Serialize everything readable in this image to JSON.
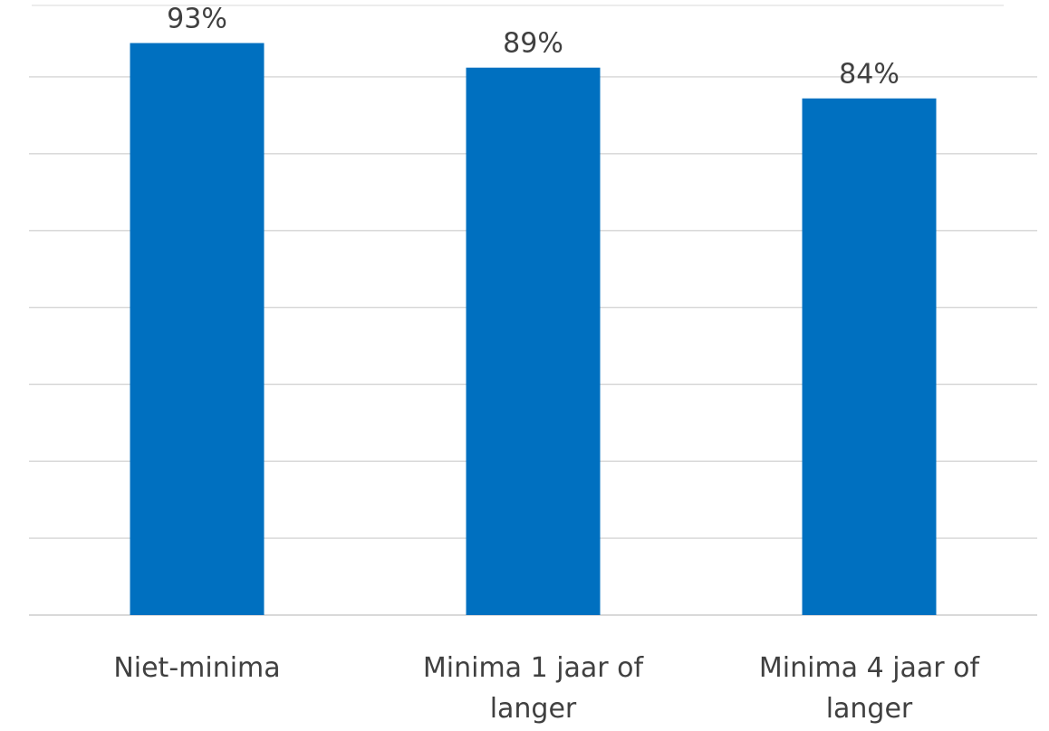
{
  "chart_data": {
    "type": "bar",
    "categories": [
      "Niet-minima",
      "Minima 1 jaar of langer",
      "Minima 4 jaar of langer"
    ],
    "category_lines": [
      [
        "Niet-minima"
      ],
      [
        "Minima 1 jaar of",
        "langer"
      ],
      [
        "Minima 4 jaar of",
        "langer"
      ]
    ],
    "values": [
      93,
      89,
      84
    ],
    "data_labels": [
      "93%",
      "89%",
      "84%"
    ],
    "ylim": [
      0,
      100
    ],
    "y_tick_step": 12.5,
    "grid": true,
    "legend": "none",
    "bar_color": "#0070C0"
  }
}
